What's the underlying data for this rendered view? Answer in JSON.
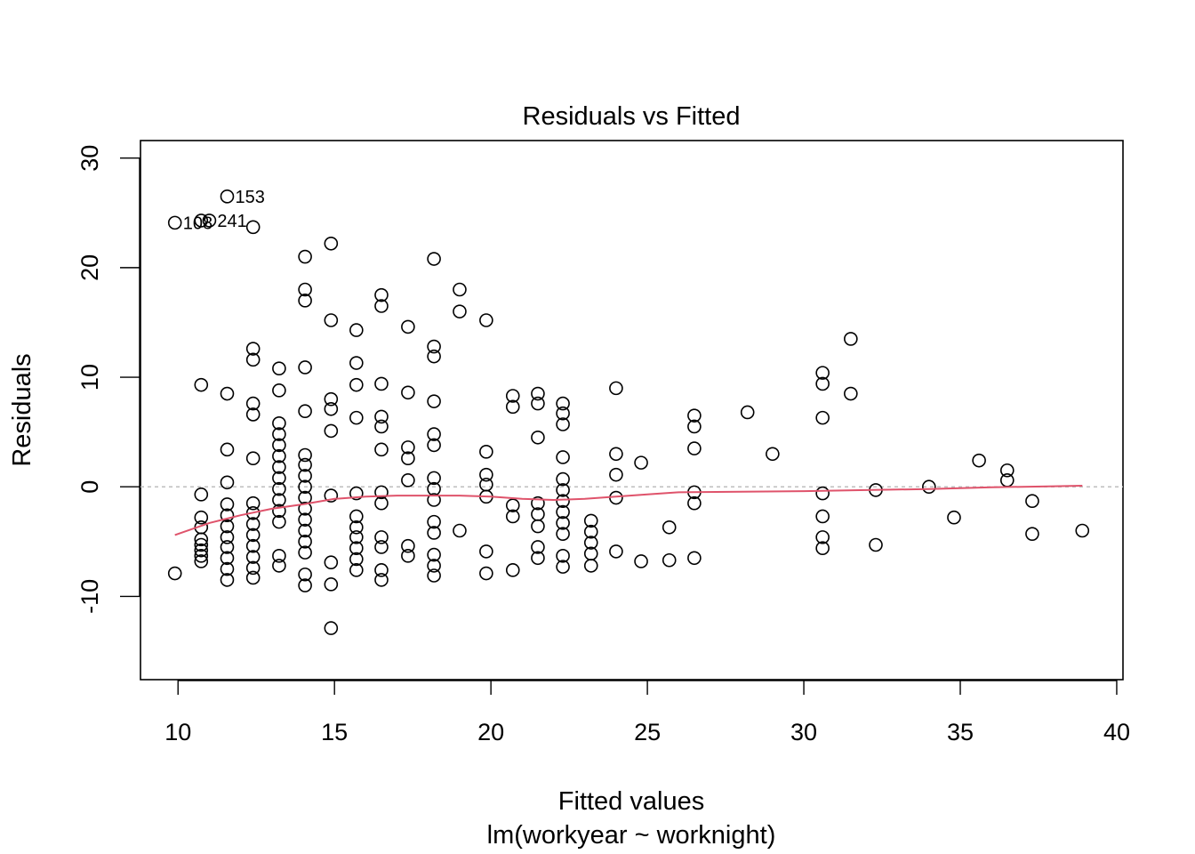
{
  "chart_data": {
    "type": "scatter",
    "title": "Residuals vs Fitted",
    "xlabel": "Fitted values",
    "subtitle": "lm(workyear ~ worknight)",
    "ylabel": "Residuals",
    "xlim": [
      8.8,
      40.2
    ],
    "ylim": [
      -17.6,
      31.6
    ],
    "xticks": [
      10,
      15,
      20,
      25,
      30,
      35,
      40
    ],
    "yticks": [
      -10,
      0,
      10,
      20,
      30
    ],
    "grid": false,
    "reference_line": {
      "y": 0,
      "style": "dotted",
      "color": "#BEBEBE"
    },
    "smooth_color": "#DF536B",
    "point_color": "#000000",
    "annotations": [
      {
        "label": "153",
        "x": 11.57,
        "y": 26.5
      },
      {
        "label": "108",
        "x": 9.9,
        "y": 24.1
      },
      {
        "label": "241",
        "x": 11.0,
        "y": 24.3
      }
    ],
    "points": [
      [
        9.9,
        24.1
      ],
      [
        9.9,
        -7.9
      ],
      [
        10.74,
        24.3
      ],
      [
        11.0,
        24.3
      ],
      [
        10.74,
        9.3
      ],
      [
        10.74,
        -0.7
      ],
      [
        10.74,
        -2.8
      ],
      [
        10.74,
        -3.7
      ],
      [
        10.74,
        -4.8
      ],
      [
        10.74,
        -5.3
      ],
      [
        10.74,
        -5.8
      ],
      [
        10.74,
        -6.3
      ],
      [
        10.74,
        -6.8
      ],
      [
        11.57,
        26.5
      ],
      [
        11.57,
        8.5
      ],
      [
        11.57,
        3.4
      ],
      [
        11.57,
        0.4
      ],
      [
        11.57,
        -1.6
      ],
      [
        11.57,
        -2.6
      ],
      [
        11.57,
        -3.6
      ],
      [
        11.57,
        -4.6
      ],
      [
        11.57,
        -5.5
      ],
      [
        11.57,
        -6.5
      ],
      [
        11.57,
        -7.5
      ],
      [
        11.57,
        -8.5
      ],
      [
        12.4,
        23.7
      ],
      [
        12.4,
        12.6
      ],
      [
        12.4,
        11.6
      ],
      [
        12.4,
        7.6
      ],
      [
        12.4,
        6.6
      ],
      [
        12.4,
        2.6
      ],
      [
        12.4,
        -1.5
      ],
      [
        12.4,
        -2.4
      ],
      [
        12.4,
        -3.4
      ],
      [
        12.4,
        -4.4
      ],
      [
        12.4,
        -5.4
      ],
      [
        12.4,
        -6.4
      ],
      [
        12.4,
        -7.4
      ],
      [
        12.4,
        -8.3
      ],
      [
        13.23,
        10.8
      ],
      [
        13.23,
        8.8
      ],
      [
        13.23,
        5.8
      ],
      [
        13.23,
        4.8
      ],
      [
        13.23,
        3.8
      ],
      [
        13.23,
        2.8
      ],
      [
        13.23,
        1.8
      ],
      [
        13.23,
        0.8
      ],
      [
        13.23,
        -0.2
      ],
      [
        13.23,
        -1.2
      ],
      [
        13.23,
        -2.2
      ],
      [
        13.23,
        -3.2
      ],
      [
        13.23,
        -6.3
      ],
      [
        13.23,
        -7.2
      ],
      [
        14.06,
        21.0
      ],
      [
        14.06,
        18.0
      ],
      [
        14.06,
        17.0
      ],
      [
        14.06,
        10.9
      ],
      [
        14.06,
        6.9
      ],
      [
        14.06,
        2.9
      ],
      [
        14.06,
        2.0
      ],
      [
        14.06,
        1.0
      ],
      [
        14.06,
        0.0
      ],
      [
        14.06,
        -1.0
      ],
      [
        14.06,
        -2.0
      ],
      [
        14.06,
        -3.0
      ],
      [
        14.06,
        -4.0
      ],
      [
        14.06,
        -5.0
      ],
      [
        14.06,
        -6.0
      ],
      [
        14.06,
        -8.0
      ],
      [
        14.06,
        -9.0
      ],
      [
        14.89,
        22.2
      ],
      [
        14.89,
        15.2
      ],
      [
        14.89,
        8.0
      ],
      [
        14.89,
        7.1
      ],
      [
        14.89,
        5.1
      ],
      [
        14.89,
        -0.8
      ],
      [
        14.89,
        -6.9
      ],
      [
        14.89,
        -8.9
      ],
      [
        14.89,
        -12.9
      ],
      [
        15.7,
        14.3
      ],
      [
        15.7,
        11.3
      ],
      [
        15.7,
        9.3
      ],
      [
        15.7,
        6.3
      ],
      [
        15.7,
        -0.6
      ],
      [
        15.7,
        -2.7
      ],
      [
        15.7,
        -3.7
      ],
      [
        15.7,
        -4.6
      ],
      [
        15.7,
        -5.6
      ],
      [
        15.7,
        -6.6
      ],
      [
        15.7,
        -7.6
      ],
      [
        16.5,
        17.5
      ],
      [
        16.5,
        16.5
      ],
      [
        16.5,
        9.4
      ],
      [
        16.5,
        6.4
      ],
      [
        16.5,
        5.5
      ],
      [
        16.5,
        3.4
      ],
      [
        16.5,
        -0.5
      ],
      [
        16.5,
        -1.5
      ],
      [
        16.5,
        -4.6
      ],
      [
        16.5,
        -5.5
      ],
      [
        16.5,
        -7.6
      ],
      [
        16.5,
        -8.5
      ],
      [
        17.35,
        14.6
      ],
      [
        17.35,
        8.6
      ],
      [
        17.35,
        3.6
      ],
      [
        17.35,
        2.6
      ],
      [
        17.35,
        0.6
      ],
      [
        17.35,
        -5.4
      ],
      [
        17.35,
        -6.3
      ],
      [
        18.18,
        20.8
      ],
      [
        18.18,
        12.8
      ],
      [
        18.18,
        11.9
      ],
      [
        18.18,
        7.8
      ],
      [
        18.18,
        4.8
      ],
      [
        18.18,
        3.8
      ],
      [
        18.18,
        0.8
      ],
      [
        18.18,
        -0.2
      ],
      [
        18.18,
        -1.2
      ],
      [
        18.18,
        -3.2
      ],
      [
        18.18,
        -4.2
      ],
      [
        18.18,
        -6.2
      ],
      [
        18.18,
        -7.2
      ],
      [
        18.18,
        -8.1
      ],
      [
        19.0,
        18.0
      ],
      [
        19.0,
        16.0
      ],
      [
        19.0,
        -4.0
      ],
      [
        19.85,
        15.2
      ],
      [
        19.85,
        3.2
      ],
      [
        19.85,
        1.1
      ],
      [
        19.85,
        0.2
      ],
      [
        19.85,
        -0.9
      ],
      [
        19.85,
        -5.9
      ],
      [
        19.85,
        -7.9
      ],
      [
        20.7,
        8.3
      ],
      [
        20.7,
        7.3
      ],
      [
        20.7,
        -1.7
      ],
      [
        20.7,
        -2.7
      ],
      [
        20.7,
        -7.6
      ],
      [
        21.5,
        8.5
      ],
      [
        21.5,
        7.6
      ],
      [
        21.5,
        4.5
      ],
      [
        21.5,
        -1.5
      ],
      [
        21.5,
        -2.5
      ],
      [
        21.5,
        -3.6
      ],
      [
        21.5,
        -5.5
      ],
      [
        21.5,
        -6.5
      ],
      [
        22.3,
        7.6
      ],
      [
        22.3,
        6.7
      ],
      [
        22.3,
        5.7
      ],
      [
        22.3,
        2.7
      ],
      [
        22.3,
        0.7
      ],
      [
        22.3,
        -0.3
      ],
      [
        22.3,
        -1.3
      ],
      [
        22.3,
        -2.3
      ],
      [
        22.3,
        -3.3
      ],
      [
        22.3,
        -4.3
      ],
      [
        22.3,
        -6.3
      ],
      [
        22.3,
        -7.3
      ],
      [
        23.2,
        -3.1
      ],
      [
        23.2,
        -4.1
      ],
      [
        23.2,
        -5.1
      ],
      [
        23.2,
        -6.1
      ],
      [
        23.2,
        -7.2
      ],
      [
        24.0,
        9.0
      ],
      [
        24.0,
        3.0
      ],
      [
        24.0,
        1.1
      ],
      [
        24.0,
        -1.0
      ],
      [
        24.0,
        -5.9
      ],
      [
        24.8,
        2.2
      ],
      [
        24.8,
        -6.8
      ],
      [
        25.7,
        -3.7
      ],
      [
        25.7,
        -6.7
      ],
      [
        26.5,
        6.5
      ],
      [
        26.5,
        5.5
      ],
      [
        26.5,
        3.5
      ],
      [
        26.5,
        -0.5
      ],
      [
        26.5,
        -1.5
      ],
      [
        26.5,
        -6.5
      ],
      [
        28.2,
        6.8
      ],
      [
        29.0,
        3.0
      ],
      [
        30.6,
        10.4
      ],
      [
        30.6,
        9.4
      ],
      [
        30.6,
        6.3
      ],
      [
        30.6,
        -0.6
      ],
      [
        30.6,
        -2.7
      ],
      [
        30.6,
        -4.6
      ],
      [
        30.6,
        -5.6
      ],
      [
        31.5,
        13.5
      ],
      [
        31.5,
        8.5
      ],
      [
        32.3,
        -0.3
      ],
      [
        32.3,
        -5.3
      ],
      [
        34.0,
        0.0
      ],
      [
        34.8,
        -2.8
      ],
      [
        35.6,
        2.4
      ],
      [
        36.5,
        1.5
      ],
      [
        36.5,
        0.6
      ],
      [
        37.3,
        -1.3
      ],
      [
        37.3,
        -4.3
      ],
      [
        38.9,
        -4.0
      ]
    ],
    "smooth": [
      [
        9.9,
        -4.4
      ],
      [
        11,
        -3.3
      ],
      [
        12,
        -2.6
      ],
      [
        13,
        -2.0
      ],
      [
        14,
        -1.6
      ],
      [
        15,
        -1.1
      ],
      [
        16,
        -0.9
      ],
      [
        17,
        -0.8
      ],
      [
        18,
        -0.8
      ],
      [
        19,
        -0.8
      ],
      [
        20,
        -0.9
      ],
      [
        21,
        -1.1
      ],
      [
        22,
        -1.2
      ],
      [
        23,
        -1.1
      ],
      [
        24,
        -0.9
      ],
      [
        25,
        -0.7
      ],
      [
        26,
        -0.5
      ],
      [
        28,
        -0.45
      ],
      [
        30,
        -0.4
      ],
      [
        32,
        -0.3
      ],
      [
        34,
        -0.2
      ],
      [
        36,
        -0.05
      ],
      [
        38,
        0.05
      ],
      [
        38.9,
        0.1
      ]
    ]
  }
}
